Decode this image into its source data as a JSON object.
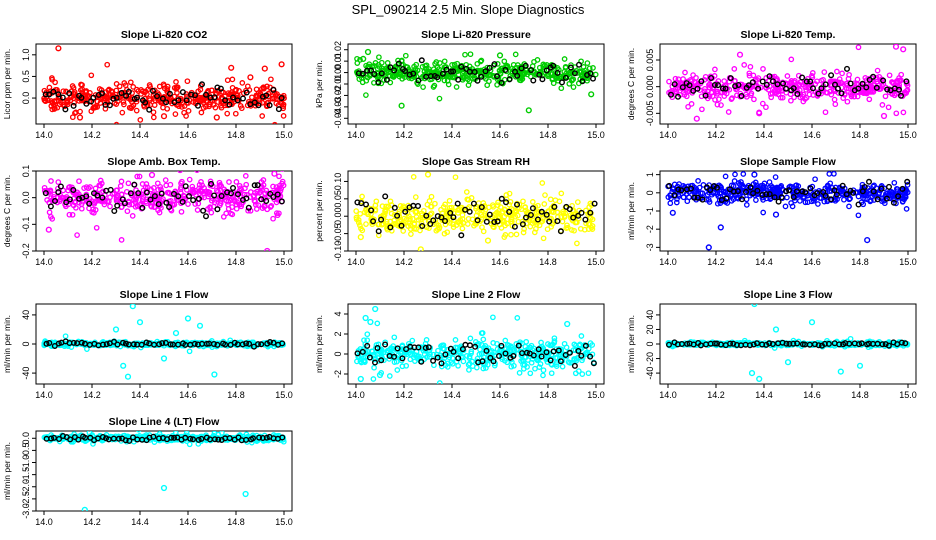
{
  "page_title": "SPL_090214  2.5 Min. Slope Diagnostics",
  "colors": {
    "red": "#ff0000",
    "green": "#00cc00",
    "magenta": "#ff00ff",
    "yellow": "#ffff00",
    "blue": "#0000ff",
    "cyan": "#00ffff",
    "black": "#000000"
  },
  "chart_data": [
    {
      "type": "scatter",
      "title": "Slope Li-820 CO2",
      "ylabel": "Licor ppm per min.",
      "color": "red",
      "xlim": [
        14.0,
        15.0
      ],
      "ylim": [
        -0.6,
        1.25
      ],
      "xticks": [
        14.0,
        14.2,
        14.4,
        14.6,
        14.8,
        15.0
      ],
      "xtick_labels": [
        "14.0",
        "14.2",
        "14.4",
        "14.6",
        "14.8",
        "15.0"
      ],
      "yticks": [
        0.0,
        0.5,
        1.0
      ],
      "ytick_labels": [
        "0.0",
        "0.5",
        "1.0"
      ],
      "dist": {
        "center": 0.0,
        "spread": 0.15
      },
      "points": [
        [
          14.06,
          1.15
        ],
        [
          14.78,
          0.7
        ],
        [
          14.92,
          0.68
        ],
        [
          14.99,
          0.78
        ],
        [
          14.86,
          0.48
        ],
        [
          14.15,
          -0.45
        ],
        [
          14.5,
          -0.42
        ],
        [
          14.72,
          -0.45
        ]
      ]
    },
    {
      "type": "scatter",
      "title": "Slope Li-820 Pressure",
      "ylabel": "kPa per min.",
      "color": "green",
      "xlim": [
        14.0,
        15.0
      ],
      "ylim": [
        -0.045,
        0.025
      ],
      "xticks": [
        14.0,
        14.2,
        14.4,
        14.6,
        14.8,
        15.0
      ],
      "xtick_labels": [
        "14.0",
        "14.2",
        "14.4",
        "14.6",
        "14.8",
        "15.0"
      ],
      "yticks": [
        -0.04,
        -0.03,
        -0.02,
        -0.01,
        0.0,
        0.01,
        0.02
      ],
      "ytick_labels": [
        "-0.04",
        "-0.03",
        "-0.02",
        "-0.01",
        "0.00",
        "0.01",
        "0.02"
      ],
      "dist": {
        "center": 0.0,
        "spread": 0.005
      },
      "points": [
        [
          14.05,
          0.018
        ],
        [
          14.19,
          -0.029
        ],
        [
          14.72,
          -0.033
        ],
        [
          14.98,
          -0.019
        ],
        [
          14.03,
          0.012
        ],
        [
          14.6,
          0.015
        ]
      ]
    },
    {
      "type": "scatter",
      "title": "Slope Li-820 Temp.",
      "ylabel": "degrees C per min.",
      "color": "magenta",
      "xlim": [
        14.0,
        15.0
      ],
      "ylim": [
        -0.007,
        0.008
      ],
      "xticks": [
        14.0,
        14.2,
        14.4,
        14.6,
        14.8,
        15.0
      ],
      "xtick_labels": [
        "14.0",
        "14.2",
        "14.4",
        "14.6",
        "14.8",
        "15.0"
      ],
      "yticks": [
        -0.005,
        0.0,
        0.005
      ],
      "ytick_labels": [
        "-0.005",
        "0.000",
        "0.005"
      ],
      "dist": {
        "center": 0.0,
        "spread": 0.0012
      },
      "points": [
        [
          14.3,
          0.006
        ],
        [
          14.95,
          0.0075
        ],
        [
          14.98,
          0.007
        ],
        [
          14.38,
          -0.005
        ],
        [
          14.12,
          -0.006
        ],
        [
          14.9,
          -0.0055
        ]
      ]
    },
    {
      "type": "scatter",
      "title": "Slope Amb. Box Temp.",
      "ylabel": "degrees C per min.",
      "color": "magenta",
      "xlim": [
        14.0,
        15.0
      ],
      "ylim": [
        -0.2,
        0.1
      ],
      "xticks": [
        14.0,
        14.2,
        14.4,
        14.6,
        14.8,
        15.0
      ],
      "xtick_labels": [
        "14.0",
        "14.2",
        "14.4",
        "14.6",
        "14.8",
        "15.0"
      ],
      "yticks": [
        -0.2,
        -0.1,
        0.0,
        0.1
      ],
      "ytick_labels": [
        "-0.2",
        "-0.1",
        "0.0",
        "0.1"
      ],
      "dist": {
        "center": 0.0,
        "spread": 0.03
      },
      "points": [
        [
          14.93,
          -0.2
        ],
        [
          14.96,
          0.09
        ],
        [
          14.45,
          0.085
        ],
        [
          14.02,
          -0.12
        ]
      ]
    },
    {
      "type": "scatter",
      "title": "Slope Gas Stream RH",
      "ylabel": "percent per min.",
      "color": "yellow",
      "xlim": [
        14.0,
        15.0
      ],
      "ylim": [
        -0.1,
        0.13
      ],
      "xticks": [
        14.0,
        14.2,
        14.4,
        14.6,
        14.8,
        15.0
      ],
      "xtick_labels": [
        "14.0",
        "14.2",
        "14.4",
        "14.6",
        "14.8",
        "15.0"
      ],
      "yticks": [
        -0.1,
        -0.05,
        0.0,
        0.05,
        0.1
      ],
      "ytick_labels": [
        "-0.10",
        "-0.05",
        "0.00",
        "0.05",
        "0.10"
      ],
      "dist": {
        "center": 0.0,
        "spread": 0.025
      },
      "points": [
        [
          14.27,
          -0.095
        ],
        [
          14.3,
          0.12
        ],
        [
          14.02,
          -0.06
        ],
        [
          14.55,
          -0.07
        ]
      ]
    },
    {
      "type": "scatter",
      "title": "Slope Sample Flow",
      "ylabel": "ml/min per min.",
      "color": "blue",
      "xlim": [
        14.0,
        15.0
      ],
      "ylim": [
        -3.2,
        1.2
      ],
      "xticks": [
        14.0,
        14.2,
        14.4,
        14.6,
        14.8,
        15.0
      ],
      "xtick_labels": [
        "14.0",
        "14.2",
        "14.4",
        "14.6",
        "14.8",
        "15.0"
      ],
      "yticks": [
        -3,
        -2,
        -1,
        0,
        1
      ],
      "ytick_labels": [
        "-3",
        "-2",
        "-1",
        "0",
        "1"
      ],
      "dist": {
        "center": 0.0,
        "spread": 0.3
      },
      "points": [
        [
          14.17,
          -3.0
        ],
        [
          14.83,
          -2.6
        ],
        [
          14.02,
          -1.1
        ],
        [
          14.22,
          -1.9
        ],
        [
          14.36,
          1.0
        ],
        [
          14.45,
          -1.2
        ]
      ]
    },
    {
      "type": "scatter",
      "title": "Slope Line 1 Flow",
      "ylabel": "ml/min per min.",
      "color": "cyan",
      "xlim": [
        14.0,
        15.0
      ],
      "ylim": [
        -55,
        55
      ],
      "xticks": [
        14.0,
        14.2,
        14.4,
        14.6,
        14.8,
        15.0
      ],
      "xtick_labels": [
        "14.0",
        "14.2",
        "14.4",
        "14.6",
        "14.8",
        "15.0"
      ],
      "yticks": [
        -40,
        0,
        40
      ],
      "ytick_labels": [
        "-40",
        "0",
        "40"
      ],
      "dist": {
        "center": 0.0,
        "spread": 1.5
      },
      "points": [
        [
          14.37,
          52
        ],
        [
          14.33,
          -30
        ],
        [
          14.35,
          -45
        ],
        [
          14.71,
          -42
        ],
        [
          14.6,
          35
        ],
        [
          14.4,
          30
        ],
        [
          14.5,
          -20
        ],
        [
          14.3,
          20
        ],
        [
          14.65,
          25
        ],
        [
          14.55,
          15
        ]
      ]
    },
    {
      "type": "scatter",
      "title": "Slope Line 2 Flow",
      "ylabel": "ml/min per min.",
      "color": "cyan",
      "xlim": [
        14.0,
        15.0
      ],
      "ylim": [
        -3,
        5
      ],
      "xticks": [
        14.0,
        14.2,
        14.4,
        14.6,
        14.8,
        15.0
      ],
      "xtick_labels": [
        "14.0",
        "14.2",
        "14.4",
        "14.6",
        "14.8",
        "15.0"
      ],
      "yticks": [
        -2,
        0,
        2,
        4
      ],
      "ytick_labels": [
        "-2",
        "0",
        "2",
        "4"
      ],
      "dist": {
        "center": 0.0,
        "spread": 0.7
      },
      "points": [
        [
          14.08,
          4.5
        ],
        [
          14.04,
          3.6
        ],
        [
          14.06,
          3.2
        ],
        [
          14.02,
          -2.5
        ],
        [
          14.88,
          3.0
        ],
        [
          14.1,
          -2.1
        ]
      ]
    },
    {
      "type": "scatter",
      "title": "Slope Line 3 Flow",
      "ylabel": "ml/min per min.",
      "color": "cyan",
      "xlim": [
        14.0,
        15.0
      ],
      "ylim": [
        -55,
        55
      ],
      "xticks": [
        14.0,
        14.2,
        14.4,
        14.6,
        14.8,
        15.0
      ],
      "xtick_labels": [
        "14.0",
        "14.2",
        "14.4",
        "14.6",
        "14.8",
        "15.0"
      ],
      "yticks": [
        -40,
        -20,
        0,
        20,
        40
      ],
      "ytick_labels": [
        "-40",
        "-20",
        "0",
        "20",
        "40"
      ],
      "dist": {
        "center": 0.0,
        "spread": 1.2
      },
      "points": [
        [
          14.36,
          55
        ],
        [
          14.38,
          -48
        ],
        [
          14.35,
          -40
        ],
        [
          14.72,
          -38
        ],
        [
          14.6,
          30
        ],
        [
          14.45,
          20
        ],
        [
          14.5,
          -25
        ],
        [
          14.8,
          -30
        ]
      ]
    },
    {
      "type": "scatter",
      "title": "Slope Line 4 (LT) Flow",
      "ylabel": "ml/min per min.",
      "color": "cyan",
      "xlim": [
        14.0,
        15.0
      ],
      "ylim": [
        -3.0,
        0.3
      ],
      "xticks": [
        14.0,
        14.2,
        14.4,
        14.6,
        14.8,
        15.0
      ],
      "xtick_labels": [
        "14.0",
        "14.2",
        "14.4",
        "14.6",
        "14.8",
        "15.0"
      ],
      "yticks": [
        -3.0,
        -2.5,
        -2.0,
        -1.5,
        -1.0,
        -0.5,
        0.0
      ],
      "ytick_labels": [
        "-3.0",
        "-2.5",
        "-2.0",
        "-1.5",
        "-1.0",
        "-0.5",
        "0.0"
      ],
      "dist": {
        "center": 0.0,
        "spread": 0.06
      },
      "points": [
        [
          14.17,
          -2.95
        ],
        [
          14.5,
          -2.05
        ],
        [
          14.84,
          -2.3
        ]
      ]
    }
  ]
}
